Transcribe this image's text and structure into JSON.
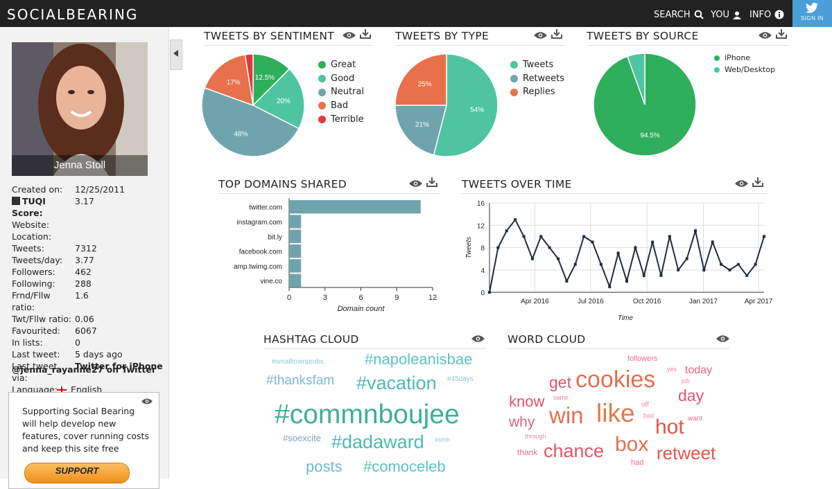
{
  "app": {
    "logo": "SOCIALBEARING",
    "nav": {
      "search": "SEARCH",
      "you": "YOU",
      "info": "INFO",
      "signin": "SIGN IN"
    }
  },
  "profile": {
    "name": "Jenna Stoll",
    "stats": [
      {
        "k": "Created on:",
        "v": "12/25/2011"
      },
      {
        "k": "TUQI Score:",
        "v": "3.17"
      },
      {
        "k": "Website:",
        "v": ""
      },
      {
        "k": "Location:",
        "v": ""
      },
      {
        "k": "Tweets:",
        "v": "7312"
      },
      {
        "k": "Tweets/day:",
        "v": "3.77"
      },
      {
        "k": "Followers:",
        "v": "462"
      },
      {
        "k": "Following:",
        "v": "288"
      },
      {
        "k": "Frnd/Fllw ratio:",
        "v": "1.6"
      },
      {
        "k": "Twt/Fllw ratio:",
        "v": "0.06"
      },
      {
        "k": "Favourited:",
        "v": "6067"
      },
      {
        "k": "In lists:",
        "v": "0"
      },
      {
        "k": "Last tweet:",
        "v": "5 days ago"
      },
      {
        "k": "Last tweet via:",
        "v": "Twitter for iPhone"
      },
      {
        "k": "Language:",
        "v": "English"
      }
    ],
    "handle": "@jenna_rayanne27 on Twitter"
  },
  "support": {
    "text": "Supporting Social Bearing will help develop new features, cover running costs and keep this site free",
    "button": "SUPPORT"
  },
  "panels": {
    "sentiment": "TWEETS BY SENTIMENT",
    "type": "TWEETS BY TYPE",
    "source": "TWEETS BY SOURCE",
    "domains": "TOP DOMAINS SHARED",
    "overtime": "TWEETS OVER TIME",
    "hashtags": "HASHTAG CLOUD",
    "words": "WORD CLOUD"
  },
  "chart_data": [
    {
      "id": "sentiment",
      "type": "pie",
      "title": "TWEETS BY SENTIMENT",
      "slices": [
        {
          "name": "Great",
          "value": 12.5,
          "label": "12.5%",
          "color": "#2fae5c"
        },
        {
          "name": "Good",
          "value": 20,
          "label": "20%",
          "color": "#4ec4a0"
        },
        {
          "name": "Neutral",
          "value": 48,
          "label": "48%",
          "color": "#6fa4ad"
        },
        {
          "name": "Bad",
          "value": 17,
          "label": "17%",
          "color": "#e8704a"
        },
        {
          "name": "Terrible",
          "value": 2.5,
          "label": "",
          "color": "#e0393e"
        }
      ],
      "legend": "right"
    },
    {
      "id": "type",
      "type": "pie",
      "title": "TWEETS BY TYPE",
      "slices": [
        {
          "name": "Tweets",
          "value": 54,
          "label": "54%",
          "color": "#4ec4a0"
        },
        {
          "name": "Retweets",
          "value": 21,
          "label": "21%",
          "color": "#6fa4ad"
        },
        {
          "name": "Replies",
          "value": 25,
          "label": "25%",
          "color": "#e8704a"
        }
      ],
      "legend": "right"
    },
    {
      "id": "source",
      "type": "pie",
      "title": "TWEETS BY SOURCE",
      "slices": [
        {
          "name": "iPhone",
          "value": 94.5,
          "label": "94.5%",
          "color": "#2fae5c"
        },
        {
          "name": "Web/Desktop",
          "value": 5.5,
          "label": "",
          "color": "#4ec4a0"
        }
      ],
      "legend": "right"
    },
    {
      "id": "domains",
      "type": "bar",
      "orientation": "horizontal",
      "title": "TOP DOMAINS SHARED",
      "categories": [
        "twitter.com",
        "instagram.com",
        "bit.ly",
        "facebook.com",
        "amp.twimg.com",
        "vine.co"
      ],
      "values": [
        11,
        1,
        1,
        1,
        1,
        1
      ],
      "xlabel": "Domain count",
      "xlim": [
        0,
        12
      ],
      "xticks": [
        0,
        3,
        6,
        9,
        12
      ],
      "color": "#6fa4ad"
    },
    {
      "id": "overtime",
      "type": "line",
      "title": "TWEETS OVER TIME",
      "xlabel": "Time",
      "ylabel": "Tweets",
      "ylim": [
        0,
        16
      ],
      "yticks": [
        0,
        4,
        8,
        12,
        16
      ],
      "xticks": [
        "Apr 2016",
        "Jul 2016",
        "Oct 2016",
        "Jan 2017",
        "Apr 2017"
      ],
      "x": [
        "2016-01-18",
        "2016-02-01",
        "2016-02-15",
        "2016-02-29",
        "2016-03-14",
        "2016-03-28",
        "2016-04-11",
        "2016-04-25",
        "2016-05-09",
        "2016-05-23",
        "2016-06-06",
        "2016-06-20",
        "2016-07-04",
        "2016-07-18",
        "2016-08-01",
        "2016-08-15",
        "2016-08-29",
        "2016-09-12",
        "2016-09-26",
        "2016-10-10",
        "2016-10-24",
        "2016-11-07",
        "2016-11-21",
        "2016-12-05",
        "2016-12-19",
        "2017-01-02",
        "2017-01-16",
        "2017-01-30",
        "2017-02-13",
        "2017-02-27",
        "2017-03-13",
        "2017-03-27",
        "2017-04-10"
      ],
      "values": [
        0,
        8,
        11,
        13,
        10,
        6,
        10,
        8,
        6,
        2,
        5,
        10,
        9,
        5,
        1,
        7,
        2,
        8,
        3,
        9,
        3,
        10,
        4,
        6,
        11,
        4,
        9,
        5,
        4,
        5,
        3,
        5,
        10
      ],
      "color": "#1f2d3a"
    }
  ],
  "hashtag_cloud": [
    {
      "text": "#smalltownprobs",
      "size": 10,
      "color": "#8cc7cf"
    },
    {
      "text": "#napoleanisbae",
      "size": 22,
      "color": "#5cc3c7"
    },
    {
      "text": "#thanksfam",
      "size": 19,
      "color": "#7cb8d0"
    },
    {
      "text": "#vacation",
      "size": 27,
      "color": "#4cbab4"
    },
    {
      "text": "#45days",
      "size": 10,
      "color": "#8cc7cf"
    },
    {
      "text": "#commnboujee",
      "size": 39,
      "color": "#3fae96"
    },
    {
      "text": "#soexcite",
      "size": 13,
      "color": "#7aa4c8"
    },
    {
      "text": "#dadaward",
      "size": 27,
      "color": "#4cbab4"
    },
    {
      "text": "#smh",
      "size": 9,
      "color": "#8cc7cf"
    },
    {
      "text": "posts",
      "size": 22,
      "color": "#6fb9d6"
    },
    {
      "text": "#comoceleb",
      "size": 22,
      "color": "#5cc3c7"
    }
  ],
  "word_cloud": [
    {
      "text": "followers",
      "size": 11,
      "color": "#e86a9a"
    },
    {
      "text": "yes",
      "size": 9,
      "color": "#e88aa8"
    },
    {
      "text": "today",
      "size": 16,
      "color": "#e8647a"
    },
    {
      "text": "get",
      "size": 23,
      "color": "#e0566a"
    },
    {
      "text": "cookies",
      "size": 34,
      "color": "#e07050"
    },
    {
      "text": "job",
      "size": 9,
      "color": "#e88aa8"
    },
    {
      "text": "know",
      "size": 22,
      "color": "#e04f68"
    },
    {
      "text": "same",
      "size": 9,
      "color": "#e88aa8"
    },
    {
      "text": "day",
      "size": 23,
      "color": "#e0566a"
    },
    {
      "text": "off",
      "size": 10,
      "color": "#e88aa8"
    },
    {
      "text": "why",
      "size": 21,
      "color": "#e0607a"
    },
    {
      "text": "win",
      "size": 33,
      "color": "#e07050"
    },
    {
      "text": "like",
      "size": 37,
      "color": "#e07a4a"
    },
    {
      "text": "bad",
      "size": 9,
      "color": "#e88aa8"
    },
    {
      "text": "want",
      "size": 10,
      "color": "#e86a9a"
    },
    {
      "text": "hot",
      "size": 30,
      "color": "#e0564a"
    },
    {
      "text": "through",
      "size": 9,
      "color": "#e88aa8"
    },
    {
      "text": "thank",
      "size": 12,
      "color": "#e86a9a"
    },
    {
      "text": "chance",
      "size": 27,
      "color": "#e0566a"
    },
    {
      "text": "box",
      "size": 30,
      "color": "#e07050"
    },
    {
      "text": "retweet",
      "size": 26,
      "color": "#e0564a"
    },
    {
      "text": "had",
      "size": 11,
      "color": "#e86a9a"
    }
  ]
}
